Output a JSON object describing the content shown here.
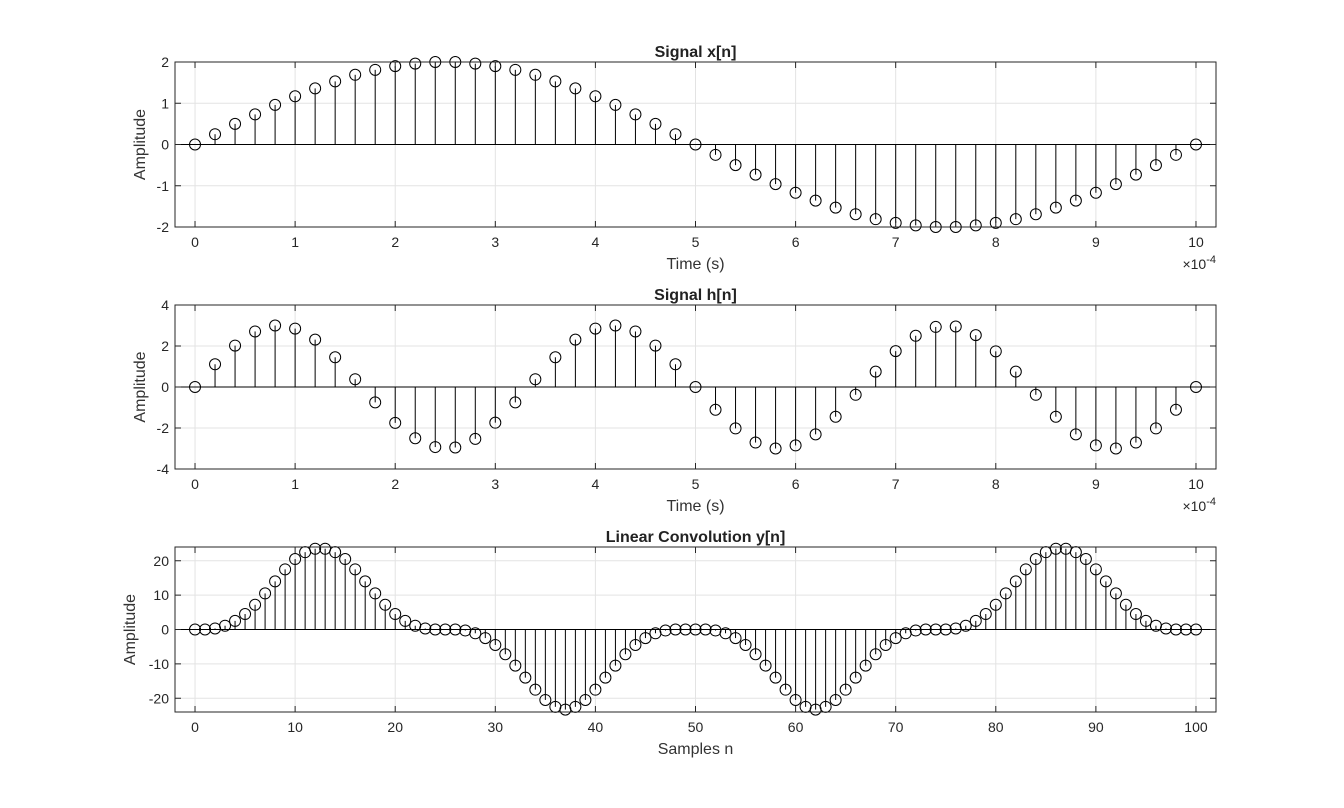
{
  "colors": {
    "stem": "#000000",
    "grid": "#e3e3e3",
    "axes": "#262626"
  },
  "chart_data": [
    {
      "type": "stem",
      "title": "Signal x[n]",
      "xlabel": "Time (s)",
      "ylabel": "Amplitude",
      "x_exponent": "×10",
      "x_exponent_power": "-4",
      "xlim": [
        -0.2,
        10.2
      ],
      "ylim": [
        -2,
        2
      ],
      "xticks": [
        0,
        1,
        2,
        3,
        4,
        5,
        6,
        7,
        8,
        9,
        10
      ],
      "xtick_labels": [
        "0",
        "1",
        "2",
        "3",
        "4",
        "5",
        "6",
        "7",
        "8",
        "9",
        "10"
      ],
      "yticks": [
        -2,
        -1,
        0,
        1,
        2
      ],
      "ytick_labels": [
        "-2",
        "-1",
        "0",
        "1",
        "2"
      ],
      "grid": true,
      "x": [
        0,
        0.2,
        0.4,
        0.6,
        0.8,
        1,
        1.2,
        1.4,
        1.6,
        1.8,
        2,
        2.2,
        2.4,
        2.6,
        2.8,
        3,
        3.2,
        3.4,
        3.6,
        3.8,
        4,
        4.2,
        4.4,
        4.6,
        4.8,
        5,
        5.2,
        5.4,
        5.6,
        5.8,
        6,
        6.2,
        6.4,
        6.6,
        6.8,
        7,
        7.2,
        7.4,
        7.6,
        7.8,
        8,
        8.2,
        8.4,
        8.6,
        8.8,
        9,
        9.2,
        9.4,
        9.6,
        9.8,
        10
      ],
      "y": [
        0,
        0.25,
        0.5,
        0.73,
        0.96,
        1.17,
        1.36,
        1.53,
        1.69,
        1.81,
        1.9,
        1.96,
        2.0,
        2.0,
        1.96,
        1.9,
        1.81,
        1.69,
        1.53,
        1.36,
        1.17,
        0.96,
        0.73,
        0.5,
        0.25,
        0,
        -0.25,
        -0.5,
        -0.73,
        -0.96,
        -1.17,
        -1.36,
        -1.53,
        -1.69,
        -1.81,
        -1.9,
        -1.96,
        -2.0,
        -2.0,
        -1.96,
        -1.9,
        -1.81,
        -1.69,
        -1.53,
        -1.36,
        -1.17,
        -0.96,
        -0.73,
        -0.5,
        -0.25,
        0
      ]
    },
    {
      "type": "stem",
      "title": "Signal h[n]",
      "xlabel": "Time (s)",
      "ylabel": "Amplitude",
      "x_exponent": "×10",
      "x_exponent_power": "-4",
      "xlim": [
        -0.2,
        10.2
      ],
      "ylim": [
        -4,
        4
      ],
      "xticks": [
        0,
        1,
        2,
        3,
        4,
        5,
        6,
        7,
        8,
        9,
        10
      ],
      "xtick_labels": [
        "0",
        "1",
        "2",
        "3",
        "4",
        "5",
        "6",
        "7",
        "8",
        "9",
        "10"
      ],
      "yticks": [
        -4,
        -2,
        0,
        2,
        4
      ],
      "ytick_labels": [
        "-4",
        "-2",
        "0",
        "2",
        "4"
      ],
      "grid": true,
      "x": [
        0,
        0.2,
        0.4,
        0.6,
        0.8,
        1,
        1.2,
        1.4,
        1.6,
        1.8,
        2,
        2.2,
        2.4,
        2.6,
        2.8,
        3,
        3.2,
        3.4,
        3.6,
        3.8,
        4,
        4.2,
        4.4,
        4.6,
        4.8,
        5,
        5.2,
        5.4,
        5.6,
        5.8,
        6,
        6.2,
        6.4,
        6.6,
        6.8,
        7,
        7.2,
        7.4,
        7.6,
        7.8,
        8,
        8.2,
        8.4,
        8.6,
        8.8,
        9,
        9.2,
        9.4,
        9.6,
        9.8,
        10
      ],
      "y": [
        0,
        1.11,
        2.02,
        2.71,
        3.0,
        2.85,
        2.31,
        1.45,
        0.38,
        -0.75,
        -1.75,
        -2.5,
        -2.93,
        -2.95,
        -2.53,
        -1.74,
        -0.75,
        0.38,
        1.45,
        2.31,
        2.85,
        3.0,
        2.71,
        2.02,
        1.11,
        0,
        -1.11,
        -2.02,
        -2.71,
        -3.0,
        -2.85,
        -2.31,
        -1.45,
        -0.38,
        0.75,
        1.75,
        2.5,
        2.93,
        2.95,
        2.53,
        1.74,
        0.75,
        -0.38,
        -1.45,
        -2.31,
        -2.85,
        -3.0,
        -2.71,
        -2.02,
        -1.11,
        0
      ]
    },
    {
      "type": "stem",
      "title": "Linear Convolution y[n]",
      "xlabel": "Samples n",
      "ylabel": "Amplitude",
      "xlim": [
        -2,
        102
      ],
      "ylim": [
        -24,
        24
      ],
      "xticks": [
        0,
        10,
        20,
        30,
        40,
        50,
        60,
        70,
        80,
        90,
        100
      ],
      "xtick_labels": [
        "0",
        "10",
        "20",
        "30",
        "40",
        "50",
        "60",
        "70",
        "80",
        "90",
        "100"
      ],
      "yticks": [
        -20,
        -10,
        0,
        10,
        20
      ],
      "ytick_labels": [
        "-20",
        "-10",
        "0",
        "10",
        "20"
      ],
      "grid": true,
      "x": [
        0,
        1,
        2,
        3,
        4,
        5,
        6,
        7,
        8,
        9,
        10,
        11,
        12,
        13,
        14,
        15,
        16,
        17,
        18,
        19,
        20,
        21,
        22,
        23,
        24,
        25,
        26,
        27,
        28,
        29,
        30,
        31,
        32,
        33,
        34,
        35,
        36,
        37,
        38,
        39,
        40,
        41,
        42,
        43,
        44,
        45,
        46,
        47,
        48,
        49,
        50,
        51,
        52,
        53,
        54,
        55,
        56,
        57,
        58,
        59,
        60,
        61,
        62,
        63,
        64,
        65,
        66,
        67,
        68,
        69,
        70,
        71,
        72,
        73,
        74,
        75,
        76,
        77,
        78,
        79,
        80,
        81,
        82,
        83,
        84,
        85,
        86,
        87,
        88,
        89,
        90,
        91,
        92,
        93,
        94,
        95,
        96,
        97,
        98,
        99,
        100
      ],
      "y": [
        0,
        0,
        0.3,
        1.1,
        2.5,
        4.5,
        7.2,
        10.5,
        14,
        17.5,
        20.5,
        22.5,
        23.5,
        23.5,
        22.5,
        20.5,
        17.5,
        14,
        10.5,
        7.2,
        4.5,
        2.5,
        1.1,
        0.3,
        0,
        0,
        0,
        -0.3,
        -1.1,
        -2.5,
        -4.5,
        -7.2,
        -10.5,
        -14,
        -17.5,
        -20.5,
        -22.5,
        -23.3,
        -22.5,
        -20.5,
        -17.5,
        -14,
        -10.5,
        -7.2,
        -4.5,
        -2.5,
        -1.1,
        -0.3,
        0,
        0,
        0,
        0,
        -0.3,
        -1.1,
        -2.5,
        -4.5,
        -7.2,
        -10.5,
        -14,
        -17.5,
        -20.5,
        -22.5,
        -23.3,
        -22.5,
        -20.5,
        -17.5,
        -14,
        -10.5,
        -7.2,
        -4.5,
        -2.5,
        -1.1,
        -0.3,
        0,
        0,
        0,
        0.3,
        1.1,
        2.5,
        4.5,
        7.2,
        10.5,
        14,
        17.5,
        20.5,
        22.5,
        23.5,
        23.5,
        22.5,
        20.5,
        17.5,
        14,
        10.5,
        7.2,
        4.5,
        2.5,
        1.1,
        0.3,
        0,
        0,
        0
      ]
    }
  ]
}
